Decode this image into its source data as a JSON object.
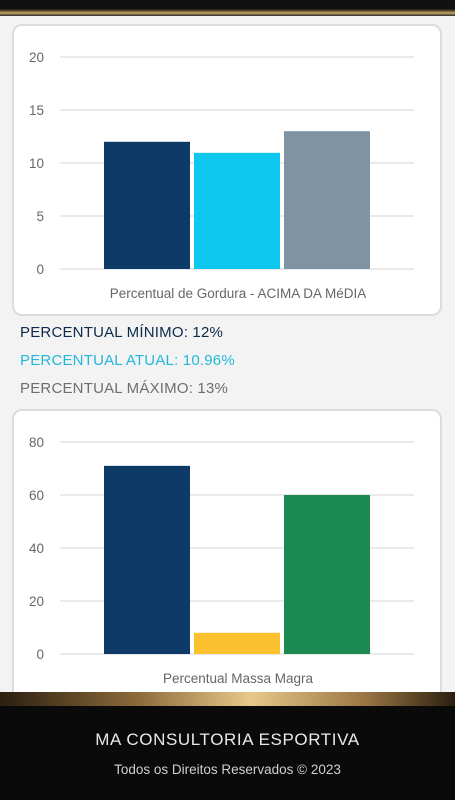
{
  "chart_data": [
    {
      "type": "bar",
      "title": "",
      "xlabel": "Percentual de Gordura - ACIMA DA MéDIA",
      "ylabel": "",
      "ylim": [
        0,
        20
      ],
      "yticks": [
        "0",
        "5",
        "10",
        "15",
        "20"
      ],
      "grid": true,
      "values": [
        12,
        10.96,
        13
      ],
      "colors": [
        "#0d3a66",
        "#0ec8ef",
        "#7f93a3"
      ]
    },
    {
      "type": "bar",
      "title": "",
      "xlabel": "Percentual Massa Magra",
      "ylabel": "",
      "ylim": [
        0,
        80
      ],
      "yticks": [
        "0",
        "20",
        "40",
        "60",
        "80"
      ],
      "grid": true,
      "values": [
        71,
        8,
        60
      ],
      "colors": [
        "#0d3a66",
        "#fbc02d",
        "#1a8a52"
      ]
    }
  ],
  "fat_legend": {
    "min_label": "PERCENTUAL MÍNIMO: 12%",
    "current_label": "PERCENTUAL ATUAL: 10.96%",
    "max_label": "PERCENTUAL MÁXIMO: 13%"
  },
  "colors": {
    "min": "#0d2a4a",
    "current": "#23b8d9",
    "max": "#6e6e6e"
  },
  "footer": {
    "brand": "MA CONSULTORIA ESPORTIVA",
    "rights": "Todos os Direitos Reservados © 2023"
  }
}
